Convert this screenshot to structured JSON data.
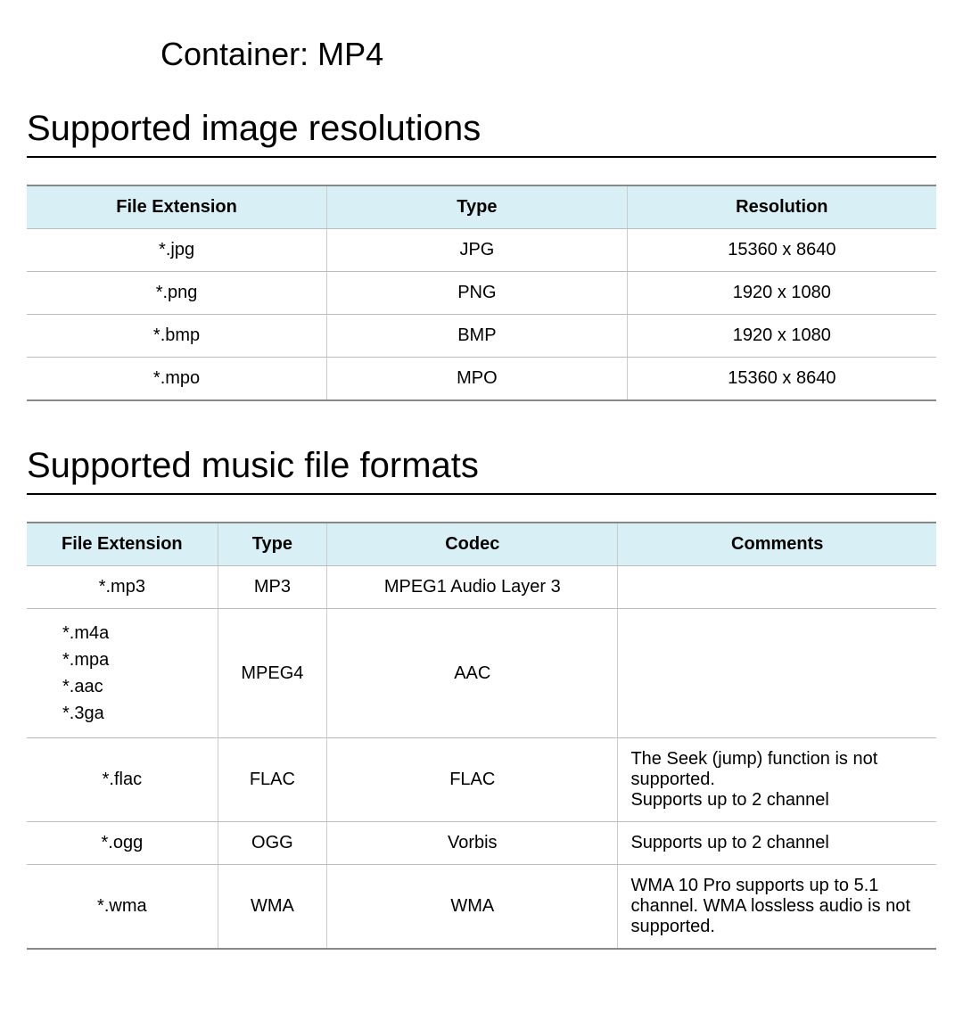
{
  "container_line": "Container: MP4",
  "image_section": {
    "title": "Supported image resolutions",
    "columns": [
      "File Extension",
      "Type",
      "Resolution"
    ],
    "rows": [
      {
        "ext": "*.jpg",
        "type": "JPG",
        "res": "15360 x 8640"
      },
      {
        "ext": "*.png",
        "type": "PNG",
        "res": "1920 x 1080"
      },
      {
        "ext": "*.bmp",
        "type": "BMP",
        "res": "1920 x 1080"
      },
      {
        "ext": "*.mpo",
        "type": "MPO",
        "res": "15360 x 8640"
      }
    ],
    "col_widths": [
      "33%",
      "33%",
      "34%"
    ]
  },
  "music_section": {
    "title": "Supported music file formats",
    "columns": [
      "File Extension",
      "Type",
      "Codec",
      "Comments"
    ],
    "rows": [
      {
        "ext": "*.mp3",
        "type": "MP3",
        "codec": "MPEG1  Audio Layer 3",
        "comments": ""
      },
      {
        "ext": "*.m4a\n*.mpa\n*.aac\n*.3ga",
        "type": "MPEG4",
        "codec": "AAC",
        "comments": ""
      },
      {
        "ext": "*.flac",
        "type": "FLAC",
        "codec": "FLAC",
        "comments": "The Seek (jump) function is not supported.\nSupports up to 2 channel"
      },
      {
        "ext": "*.ogg",
        "type": "OGG",
        "codec": "Vorbis",
        "comments": "Supports up to 2 channel"
      },
      {
        "ext": "*.wma",
        "type": "WMA",
        "codec": "WMA",
        "comments": "WMA 10 Pro supports up to 5.1 channel. WMA lossless audio is not supported."
      }
    ],
    "col_widths": [
      "21%",
      "12%",
      "32%",
      "35%"
    ]
  },
  "colors": {
    "header_bg": "#d8f0f5",
    "border_outer": "#888888",
    "border_inner": "#bbbbbb",
    "border_col": "#cccccc",
    "background": "#ffffff",
    "text": "#000000"
  },
  "typography": {
    "container_fontsize": 36,
    "section_fontsize": 40,
    "table_fontsize": 20
  }
}
